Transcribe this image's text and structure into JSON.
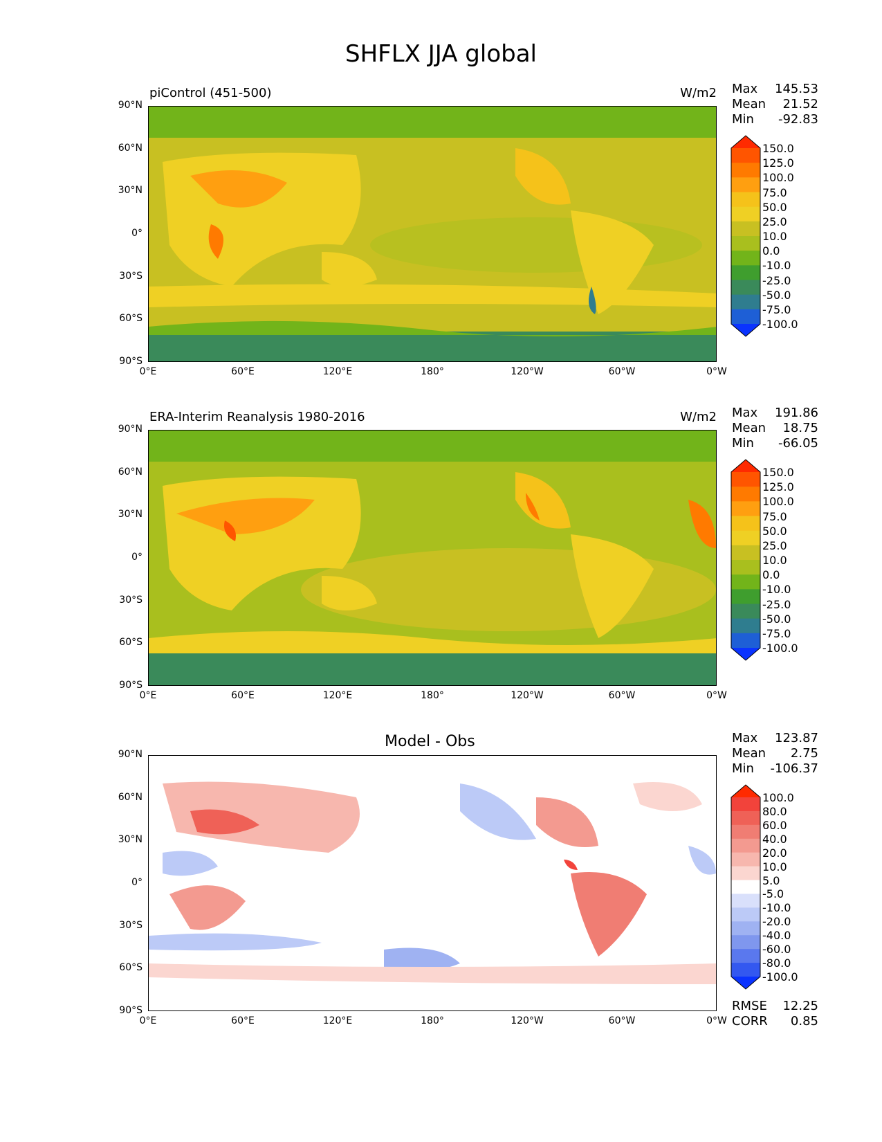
{
  "figure": {
    "title": "SHFLX JJA global"
  },
  "lat_labels": [
    "90°N",
    "60°N",
    "30°N",
    "0°",
    "30°S",
    "60°S",
    "90°S"
  ],
  "lon_labels": [
    "0°E",
    "60°E",
    "120°E",
    "180°",
    "120°W",
    "60°W",
    "0°W"
  ],
  "panels": [
    {
      "title": "piControl (451-500)",
      "units": "W/m2",
      "stats": {
        "max_label": "Max",
        "max": "145.53",
        "mean_label": "Mean",
        "mean": "21.52",
        "min_label": "Min",
        "min": "-92.83"
      },
      "colorbar": {
        "labels": [
          "150.0",
          "125.0",
          "100.0",
          "75.0",
          "50.0",
          "25.0",
          "10.0",
          "0.0",
          "-10.0",
          "-25.0",
          "-50.0",
          "-75.0",
          "-100.0"
        ],
        "colors": [
          "#ff2a00",
          "#ff5500",
          "#ff7a00",
          "#ff9f10",
          "#f5c21a",
          "#efd024",
          "#c8c022",
          "#a9bf1e",
          "#72b41a",
          "#3f9e2e",
          "#3a8a5a",
          "#2f7d8f",
          "#1e5fd6",
          "#0a33ff"
        ]
      }
    },
    {
      "title": "ERA-Interim Reanalysis 1980-2016",
      "units": "W/m2",
      "stats": {
        "max_label": "Max",
        "max": "191.86",
        "mean_label": "Mean",
        "mean": "18.75",
        "min_label": "Min",
        "min": "-66.05"
      },
      "colorbar": {
        "labels": [
          "150.0",
          "125.0",
          "100.0",
          "75.0",
          "50.0",
          "25.0",
          "10.0",
          "0.0",
          "-10.0",
          "-25.0",
          "-50.0",
          "-75.0",
          "-100.0"
        ],
        "colors": [
          "#ff2a00",
          "#ff5500",
          "#ff7a00",
          "#ff9f10",
          "#f5c21a",
          "#efd024",
          "#c8c022",
          "#a9bf1e",
          "#72b41a",
          "#3f9e2e",
          "#3a8a5a",
          "#2f7d8f",
          "#1e5fd6",
          "#0a33ff"
        ]
      }
    },
    {
      "title": "Model - Obs",
      "units": "",
      "stats": {
        "max_label": "Max",
        "max": "123.87",
        "mean_label": "Mean",
        "mean": "2.75",
        "min_label": "Min",
        "min": "-106.37"
      },
      "colorbar": {
        "labels": [
          "100.0",
          "80.0",
          "60.0",
          "40.0",
          "20.0",
          "10.0",
          "5.0",
          "-5.0",
          "-10.0",
          "-20.0",
          "-40.0",
          "-60.0",
          "-80.0",
          "-100.0"
        ],
        "colors": [
          "#ff2a00",
          "#f2433b",
          "#ef6157",
          "#f07d73",
          "#f39a90",
          "#f7b7ae",
          "#fbd6d0",
          "#ffffff",
          "#d9e0fb",
          "#bccaf7",
          "#9fb2f2",
          "#7f97ee",
          "#5a78ee",
          "#3358f0",
          "#0a33ff"
        ]
      },
      "footer": {
        "rmse_label": "RMSE",
        "rmse": "12.25",
        "corr_label": "CORR",
        "corr": "0.85"
      }
    }
  ]
}
